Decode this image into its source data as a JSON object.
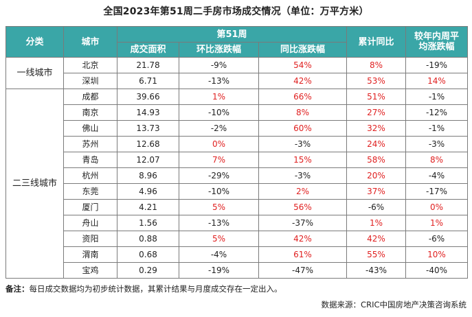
{
  "title": "全国2023年第51周二手房市场成交情况（单位：万平方米）",
  "header": {
    "category": "分类",
    "city": "城市",
    "week_group": "第51周",
    "area": "成交面积",
    "mom": "环比涨跌幅",
    "yoy": "同比涨跌幅",
    "cumulative": "累计同比",
    "avg_line1": "较年内周平",
    "avg_line2": "均涨跌幅"
  },
  "groups": [
    {
      "category": "一线城市",
      "rows": [
        {
          "city": "北京",
          "area": "21.78",
          "mom": "-9%",
          "yoy": "54%",
          "cum": "8%",
          "avg": "-19%"
        },
        {
          "city": "深圳",
          "area": "6.71",
          "mom": "-13%",
          "yoy": "42%",
          "cum": "53%",
          "avg": "14%"
        }
      ]
    },
    {
      "category": "二三线城市",
      "rows": [
        {
          "city": "成都",
          "area": "39.66",
          "mom": "1%",
          "yoy": "66%",
          "cum": "51%",
          "avg": "-1%"
        },
        {
          "city": "南京",
          "area": "14.93",
          "mom": "-10%",
          "yoy": "8%",
          "cum": "27%",
          "avg": "-12%"
        },
        {
          "city": "佛山",
          "area": "13.73",
          "mom": "-2%",
          "yoy": "60%",
          "cum": "32%",
          "avg": "-1%"
        },
        {
          "city": "苏州",
          "area": "12.68",
          "mom": "0%",
          "yoy": "-3%",
          "cum": "24%",
          "avg": "-3%"
        },
        {
          "city": "青岛",
          "area": "12.07",
          "mom": "7%",
          "yoy": "15%",
          "cum": "58%",
          "avg": "8%"
        },
        {
          "city": "杭州",
          "area": "8.96",
          "mom": "-29%",
          "yoy": "-3%",
          "cum": "20%",
          "avg": "-4%"
        },
        {
          "city": "东莞",
          "area": "4.96",
          "mom": "-10%",
          "yoy": "2%",
          "cum": "37%",
          "avg": "-17%"
        },
        {
          "city": "厦门",
          "area": "4.21",
          "mom": "5%",
          "yoy": "56%",
          "cum": "-6%",
          "avg": "0%"
        },
        {
          "city": "舟山",
          "area": "1.56",
          "mom": "-13%",
          "yoy": "-37%",
          "cum": "1%",
          "avg": "1%"
        },
        {
          "city": "资阳",
          "area": "0.88",
          "mom": "5%",
          "yoy": "42%",
          "cum": "42%",
          "avg": "-6%"
        },
        {
          "city": "渭南",
          "area": "0.68",
          "mom": "-4%",
          "yoy": "61%",
          "cum": "55%",
          "avg": "10%"
        },
        {
          "city": "宝鸡",
          "area": "0.29",
          "mom": "-19%",
          "yoy": "-47%",
          "cum": "-43%",
          "avg": "-40%"
        }
      ]
    }
  ],
  "colors": {
    "header_bg": "#3aa6a7",
    "positive": "#e02020",
    "negative": "#222222"
  },
  "note_label": "备注：",
  "note_text": "每日成交数据均为初步统计数据，其累计结果与月度成交存在一定出入。",
  "source": "数据来源：CRIC中国房地产决策咨询系统"
}
